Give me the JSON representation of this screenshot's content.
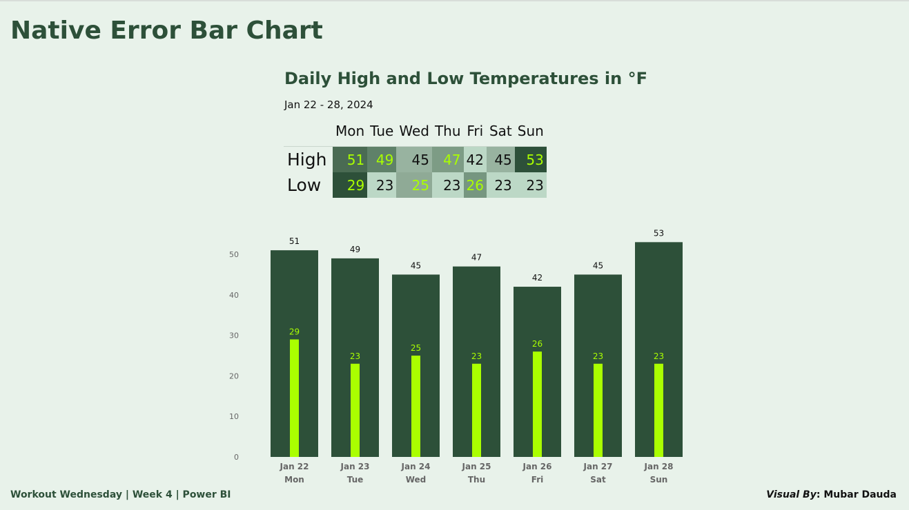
{
  "page": {
    "title": "Native Error Bar Chart",
    "footer_left": "Workout Wednesday | Week 4 | Power BI",
    "footer_right_label": "Visual By",
    "footer_right_name": "Mubar Dauda"
  },
  "matrix": {
    "title": "Daily High and Low Temperatures in °F",
    "subtitle": "Jan 22 - 28, 2024",
    "columns": [
      "Mon",
      "Tue",
      "Wed",
      "Thu",
      "Fri",
      "Sat",
      "Sun"
    ],
    "rows": [
      {
        "label": "High",
        "values": [
          51,
          49,
          45,
          47,
          42,
          45,
          53
        ],
        "bg": [
          "#4a6b53",
          "#5f8169",
          "#98b3a0",
          "#7d9c85",
          "#bcd8c6",
          "#98b3a0",
          "#2d5039"
        ],
        "fg": [
          "#aaff00",
          "#aaff00",
          "#111111",
          "#aaff00",
          "#111111",
          "#111111",
          "#aaff00"
        ]
      },
      {
        "label": "Low",
        "values": [
          29,
          23,
          25,
          23,
          26,
          23,
          23
        ],
        "bg": [
          "#2d5039",
          "#bcd8c6",
          "#8faa96",
          "#bcd8c6",
          "#769680",
          "#bcd8c6",
          "#bcd8c6"
        ],
        "fg": [
          "#aaff00",
          "#111111",
          "#aaff00",
          "#111111",
          "#aaff00",
          "#111111",
          "#111111"
        ]
      }
    ]
  },
  "chart_data": {
    "type": "bar",
    "categories": [
      "Jan 22",
      "Jan 23",
      "Jan 24",
      "Jan 25",
      "Jan 26",
      "Jan 27",
      "Jan 28"
    ],
    "subcategories": [
      "Mon",
      "Tue",
      "Wed",
      "Thu",
      "Fri",
      "Sat",
      "Sun"
    ],
    "series": [
      {
        "name": "High",
        "values": [
          51,
          49,
          45,
          47,
          42,
          45,
          53
        ],
        "color": "#2d5039"
      },
      {
        "name": "Low",
        "values": [
          29,
          23,
          25,
          23,
          26,
          23,
          23
        ],
        "color": "#aaff00"
      }
    ],
    "yticks": [
      0,
      10,
      20,
      30,
      40,
      50
    ],
    "ylim": [
      0,
      55
    ],
    "grid": false
  }
}
